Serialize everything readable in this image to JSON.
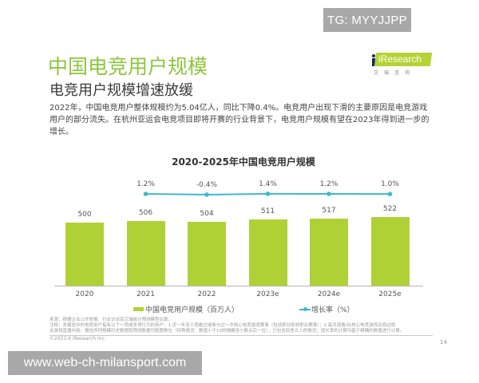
{
  "watermarks": {
    "top_right": "TG: MYYJJPP",
    "bottom_left": "www.web-ch-milansport.com"
  },
  "header": {
    "title": "中国电竞用户规模",
    "subtitle": "电竞用户规模增速放缓",
    "logo_text": "iResearch",
    "logo_subtext": "艾瑞咨询"
  },
  "intro": "2022年，中国电竞用户整体规模约为5.04亿人，同比下降0.4%。电竞用户出现下滑的主要原因是电竞游戏用户的部分流失。在杭州亚运会电竞项目即将开赛的行业背景下，电竞用户规模有望在2023年得到进一步的增长。",
  "chart_data": {
    "type": "bar+line",
    "title": "2020-2025年中国电竞用户规模",
    "categories": [
      "2020",
      "2021",
      "2022",
      "2023e",
      "2024e",
      "2025e"
    ],
    "series": [
      {
        "name": "中国电竞用户规模（百万人）",
        "type": "bar",
        "color": "#b0d136",
        "values": [
          500,
          506,
          504,
          511,
          517,
          522
        ],
        "labels": [
          "500",
          "506",
          "504",
          "511",
          "517",
          "522"
        ]
      },
      {
        "name": "增长率（%）",
        "type": "line",
        "color": "#3fb8cf",
        "categories": [
          "2021",
          "2022",
          "2023e",
          "2024e",
          "2025e"
        ],
        "values": [
          1.2,
          -0.4,
          1.4,
          1.2,
          1.0
        ],
        "labels": [
          "1.2%",
          "-0.4%",
          "1.4%",
          "1.2%",
          "1.0%"
        ]
      }
    ],
    "xlabel": "",
    "ylabel": "",
    "grid": false,
    "legend_position": "bottom"
  },
  "legend": {
    "bar_label": "中国电竞用户规模（百万人）",
    "line_label": "增长率（%）"
  },
  "footnotes": {
    "source": "来源：根据企业公开财报、行业访谈及艾瑞统计预测模型估算。",
    "note_line1": "注释：本报告中的电竞用户指有以下一项或多项行为的用户：1.近一年至少观看过或参与过一次核心电竞游戏赛事（包括职业和非职业赛事）；2.每月观看/玩核心电竞游戏及周边相",
    "note_line2": "关游戏直播内容。报告所列规模历史数据和预测数据均取整数位（特殊情况：数值小于10的精确至小数点后一位），已包含四舍五入的情况；增长率的计算均基于精确的数值进行计算。",
    "copyright": "©2023.6 iResearch Inc.",
    "page_number": "14"
  }
}
